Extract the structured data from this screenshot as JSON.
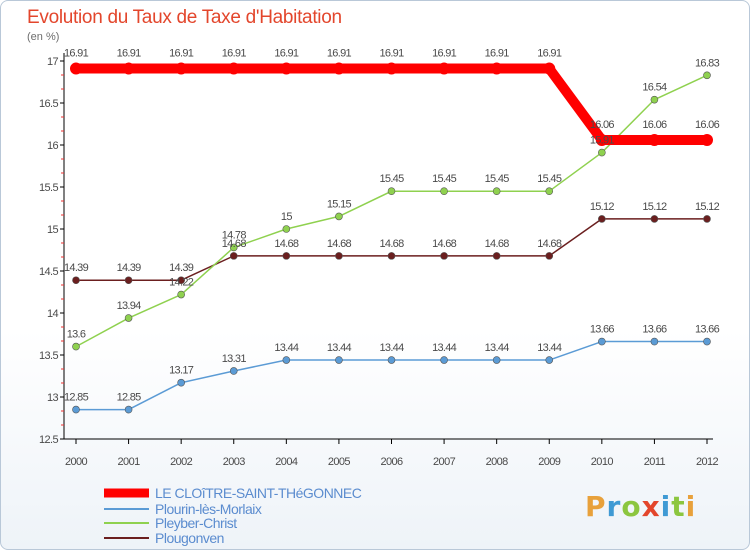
{
  "logo": "Proxiti",
  "chart_data": {
    "type": "line",
    "title": "Evolution du Taux de Taxe d'Habitation",
    "unit_label": "(en %)",
    "x": [
      2000,
      2001,
      2002,
      2003,
      2004,
      2005,
      2006,
      2007,
      2008,
      2009,
      2010,
      2011,
      2012
    ],
    "y_ticks": [
      12.5,
      13,
      13.5,
      14,
      14.5,
      15,
      15.5,
      16,
      16.5,
      17
    ],
    "ylim": [
      12.5,
      17
    ],
    "grid": false,
    "legend_position": "bottom-left",
    "series": [
      {
        "name": "LE CLOîTRE-SAINT-THéGONNEC",
        "color": "#ff0000",
        "values": [
          16.91,
          16.91,
          16.91,
          16.91,
          16.91,
          16.91,
          16.91,
          16.91,
          16.91,
          16.91,
          16.06,
          16.06,
          16.06
        ],
        "labels": [
          "16.91",
          "16.91",
          "16.91",
          "16.91",
          "16.91",
          "16.91",
          "16.91",
          "16.91",
          "16.91",
          "16.91",
          "16.06",
          "16.06",
          "16.06"
        ]
      },
      {
        "name": "Plourin-lès-Morlaix",
        "color": "#5b9bd5",
        "values": [
          12.85,
          12.85,
          13.17,
          13.31,
          13.44,
          13.44,
          13.44,
          13.44,
          13.44,
          13.44,
          13.66,
          13.66,
          13.66
        ],
        "labels": [
          "12.85",
          "12.85",
          "13.17",
          "13.31",
          "13.44",
          "13.44",
          "13.44",
          "13.44",
          "13.44",
          "13.44",
          "13.66",
          "13.66",
          "13.66"
        ]
      },
      {
        "name": "Pleyber-Christ",
        "color": "#8fd14f",
        "values": [
          13.6,
          13.94,
          14.22,
          14.78,
          15,
          15.15,
          15.45,
          15.45,
          15.45,
          15.45,
          15.91,
          16.54,
          16.83
        ],
        "labels": [
          "13.6",
          "13.94",
          "14.22",
          "14.78",
          "15",
          "15.15",
          "15.45",
          "15.45",
          "15.45",
          "15.45",
          "15.91",
          "16.54",
          "16.83"
        ]
      },
      {
        "name": "Plougonven",
        "color": "#6b1f1f",
        "values": [
          14.39,
          14.39,
          14.39,
          14.68,
          14.68,
          14.68,
          14.68,
          14.68,
          14.68,
          14.68,
          15.12,
          15.12,
          15.12
        ],
        "labels": [
          "14.39",
          "14.39",
          "14.39",
          "14.68",
          "14.68",
          "14.68",
          "14.68",
          "14.68",
          "14.68",
          "14.68",
          "15.12",
          "15.12",
          "15.12"
        ]
      }
    ]
  }
}
